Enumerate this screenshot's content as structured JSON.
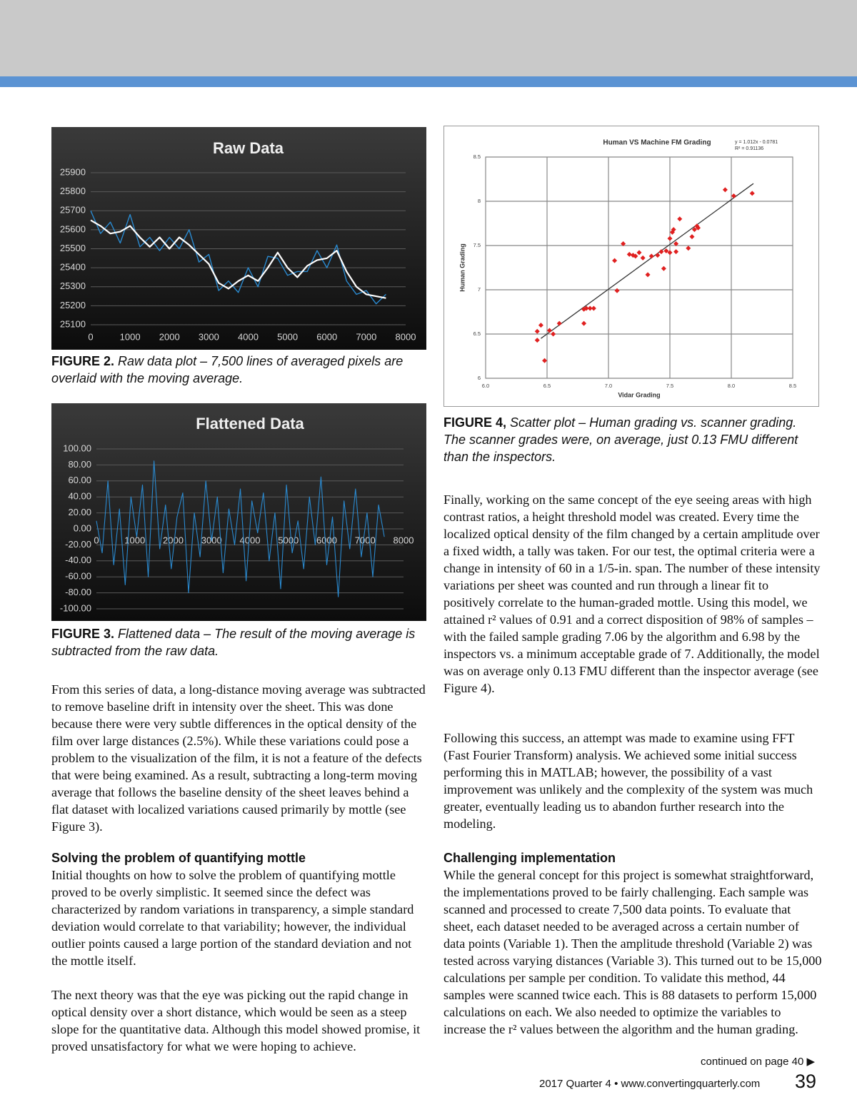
{
  "chart_data": [
    {
      "type": "line",
      "title": "Raw Data",
      "x": [
        0,
        250,
        500,
        750,
        1000,
        1250,
        1500,
        1750,
        2000,
        2250,
        2500,
        2750,
        3000,
        3250,
        3500,
        3750,
        4000,
        4250,
        4500,
        4750,
        5000,
        5250,
        5500,
        5750,
        6000,
        6250,
        6500,
        6750,
        7000,
        7250,
        7500
      ],
      "series": [
        {
          "color": "#2a8ad0",
          "values": [
            25700,
            25580,
            25640,
            25530,
            25680,
            25510,
            25560,
            25490,
            25560,
            25500,
            25600,
            25430,
            25470,
            25280,
            25330,
            25270,
            25400,
            25300,
            25460,
            25450,
            25360,
            25380,
            25380,
            25490,
            25400,
            25520,
            25330,
            25260,
            25280,
            25210,
            25260
          ]
        },
        {
          "color": "#ffffff",
          "values": [
            25650,
            25620,
            25580,
            25590,
            25620,
            25560,
            25510,
            25560,
            25500,
            25560,
            25520,
            25470,
            25420,
            25320,
            25290,
            25330,
            25360,
            25330,
            25400,
            25480,
            25400,
            25350,
            25410,
            25440,
            25450,
            25490,
            25380,
            25300,
            25260,
            25250,
            25240
          ]
        }
      ],
      "xlim": [
        0,
        8000
      ],
      "xticks": [
        0,
        1000,
        2000,
        3000,
        4000,
        5000,
        6000,
        7000,
        8000
      ],
      "ylim": [
        25100,
        25900
      ],
      "yticks": [
        25100,
        25200,
        25300,
        25400,
        25500,
        25600,
        25700,
        25800,
        25900
      ],
      "grid": "y"
    },
    {
      "type": "line",
      "title": "Flattened Data",
      "x": [
        0,
        150,
        300,
        450,
        600,
        750,
        900,
        1050,
        1200,
        1350,
        1500,
        1650,
        1800,
        1950,
        2100,
        2250,
        2400,
        2550,
        2700,
        2850,
        3000,
        3150,
        3300,
        3450,
        3600,
        3750,
        3900,
        4050,
        4200,
        4350,
        4500,
        4650,
        4800,
        4950,
        5100,
        5250,
        5400,
        5550,
        5700,
        5850,
        6000,
        6150,
        6300,
        6450,
        6600,
        6750,
        6900,
        7050,
        7200,
        7350,
        7500
      ],
      "series": [
        {
          "color": "#2a8ad0",
          "values": [
            10,
            -30,
            60,
            -45,
            25,
            -70,
            40,
            -10,
            55,
            -60,
            85,
            -25,
            30,
            -50,
            15,
            45,
            -80,
            20,
            -35,
            60,
            -15,
            40,
            -55,
            25,
            -20,
            50,
            -65,
            35,
            -5,
            45,
            -40,
            20,
            -75,
            55,
            -30,
            10,
            -50,
            40,
            -20,
            65,
            -45,
            15,
            -85,
            35,
            -25,
            50,
            -35,
            20,
            -60,
            30,
            -10
          ]
        }
      ],
      "xlim": [
        0,
        8000
      ],
      "xticks": [
        0,
        1000,
        2000,
        3000,
        4000,
        5000,
        6000,
        7000,
        8000
      ],
      "ylim": [
        -100,
        100
      ],
      "yticks": [
        {
          "value": -100,
          "label": "-100.00"
        },
        {
          "value": -80,
          "label": "-80.00"
        },
        {
          "value": -60,
          "label": "-60.00"
        },
        {
          "value": -40,
          "label": "-40.00"
        },
        {
          "value": -20,
          "label": "-20.00"
        },
        {
          "value": 0,
          "label": "0.00"
        },
        {
          "value": 20,
          "label": "20.00"
        },
        {
          "value": 40,
          "label": "40.00"
        },
        {
          "value": 60,
          "label": "60.00"
        },
        {
          "value": 80,
          "label": "80.00"
        },
        {
          "value": 100,
          "label": "100.00"
        }
      ],
      "grid": "y"
    },
    {
      "type": "scatter",
      "title": "Human VS Machine FM Grading",
      "annotations": [
        "y = 1.012x - 0.0781",
        "R² = 0.91136"
      ],
      "xlabel": "Vidar Grading",
      "ylabel": "Human Grading",
      "x": [
        6.42,
        6.42,
        6.45,
        6.48,
        6.52,
        6.55,
        6.6,
        6.8,
        6.8,
        6.82,
        6.85,
        6.88,
        7.05,
        7.07,
        7.12,
        7.17,
        7.2,
        7.22,
        7.25,
        7.28,
        7.32,
        7.35,
        7.4,
        7.43,
        7.45,
        7.47,
        7.5,
        7.5,
        7.52,
        7.53,
        7.55,
        7.55,
        7.58,
        7.65,
        7.68,
        7.7,
        7.72,
        7.73,
        7.95,
        8.02,
        8.17
      ],
      "series": [
        {
          "color": "#e02020",
          "values": [
            6.43,
            6.53,
            6.6,
            6.2,
            6.54,
            6.5,
            6.62,
            6.62,
            6.78,
            6.79,
            6.79,
            6.79,
            7.33,
            6.99,
            7.52,
            7.4,
            7.39,
            7.38,
            7.42,
            7.36,
            7.17,
            7.38,
            7.39,
            7.43,
            7.24,
            7.44,
            7.42,
            7.58,
            7.65,
            7.68,
            7.52,
            7.43,
            7.8,
            7.47,
            7.6,
            7.68,
            7.72,
            7.7,
            8.13,
            8.06,
            8.09
          ]
        }
      ],
      "trend": {
        "color": "#333333",
        "x": [
          6.45,
          8.18
        ],
        "values": [
          6.45,
          8.2
        ]
      },
      "xlim": [
        6,
        8.5
      ],
      "xticks": [
        {
          "value": 6,
          "label": "6.0"
        },
        {
          "value": 6.5,
          "label": "6.5"
        },
        {
          "value": 7,
          "label": "7.0"
        },
        {
          "value": 7.5,
          "label": "7.5"
        },
        {
          "value": 8,
          "label": "8.0"
        },
        {
          "value": 8.5,
          "label": "8.5"
        }
      ],
      "ylim": [
        6,
        8.5
      ],
      "yticks": [
        6,
        6.5,
        7,
        7.5,
        8,
        8.5
      ],
      "grid": "both"
    }
  ],
  "captions": [
    {
      "label": "FIGURE 2.",
      "text": "Raw data plot – 7,500 lines of averaged pixels are overlaid with the moving average."
    },
    {
      "label": "FIGURE 3.",
      "text": "Flattened data – The result of the moving average is subtracted from the raw data."
    },
    {
      "label": "FIGURE 4,",
      "text": "Scatter plot – Human grading vs. scanner grading. The scanner grades were, on average, just 0.13 FMU different than the inspectors."
    }
  ],
  "left": {
    "p0": "From this series of data, a long-distance moving average was subtracted to remove baseline drift in intensity over the sheet. This was done because there were very subtle differences in the optical density of the film over large distances (2.5%). While these variations could pose a problem to the visualization of the film, it is not a feature of the defects that were being examined. As a result, subtracting a long-term moving average that follows the baseline density of the sheet leaves behind a flat dataset with localized variations caused primarily by mottle (see Figure 3).",
    "heading": "Solving the problem of quantifying mottle",
    "p1": "Initial thoughts on how to solve the problem of quantifying mottle proved to be overly simplistic. It seemed since the defect was characterized by random variations in transparency, a simple standard deviation would correlate to that variability; however, the individual outlier points caused a large portion of the standard deviation and not the mottle itself.",
    "p2": "The next theory was that the eye was picking out the rapid change in optical density over a short distance, which would be seen as a steep slope for the quantitative data. Although this model showed promise, it proved unsatisfactory for what we were hoping to achieve."
  },
  "right": {
    "p0": "Finally, working on the same concept of the eye seeing areas with high contrast ratios, a height threshold model was created. Every time the localized optical density of the film changed by a certain amplitude over a fixed width, a tally was taken. For our test, the optimal criteria were a change in intensity of 60 in a 1/5-in. span. The number of these intensity variations per sheet was counted and run through a linear fit to positively correlate to the human-graded mottle. Using this model, we attained r² values of 0.91 and a correct disposition of 98% of samples – with the failed sample grading 7.06 by the algorithm and 6.98 by the inspectors vs. a minimum acceptable grade of 7. Additionally, the model was on average only 0.13 FMU different than the inspector average (see Figure 4).",
    "p1": "Following this success, an attempt was made to examine using FFT (Fast Fourier Transform) analysis. We achieved some initial success performing this in MATLAB; however, the possibility of a vast improvement was unlikely and the complexity of the system was much greater, eventually leading us to abandon further research into the modeling.",
    "heading": "Challenging implementation",
    "p2": "While the general concept for this project is somewhat straightforward, the implementations proved to be fairly challenging. Each sample was scanned and processed to create 7,500 data points. To evaluate that sheet, each dataset needed to be averaged across a certain number of data points (Variable 1). Then the amplitude threshold (Variable 2) was tested across varying distances (Variable 3). This turned out to be 15,000 calculations per sample per condition. To validate this method, 44 samples were scanned twice each. This is 88 datasets to perform 15,000 calculations on each. We also needed to optimize the variables to increase the r² values between the algorithm and the human grading."
  },
  "footer": {
    "continued": "continued on page 40 ▶",
    "issue": "2017 Quarter 4 • www.convertingquarterly.com",
    "page": "39"
  }
}
